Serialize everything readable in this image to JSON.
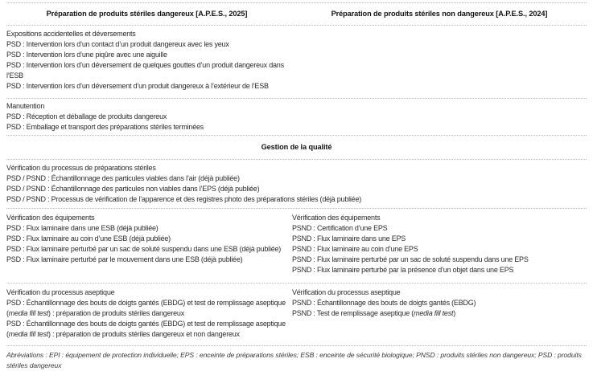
{
  "table": {
    "column_headers": {
      "left": "Préparation de produits stériles dangereux [A.P.E.S., 2025]",
      "right": "Préparation de produits stériles non dangereux [A.P.E.S., 2024]"
    },
    "quality_banner": "Gestion de la qualité",
    "sections": {
      "expositions": {
        "title": "Expositions accidentelles et déversements",
        "items": [
          "PSD : Intervention lors d’un contact d’un produit dangereux avec les yeux",
          "PSD : Intervention lors d’une piqûre avec une aiguille",
          "PSD : Intervention lors d’un déversement de quelques gouttes d’un produit dangereux dans l’ESB",
          "PSD : Intervention lors d’un déversement d’un produit dangereux à l’extérieur de l’ESB"
        ]
      },
      "manutention": {
        "title": "Manutention",
        "items": [
          "PSD : Réception et déballage de produits dangereux",
          "PSD : Emballage et transport des préparations stériles terminées"
        ]
      },
      "processus_steriles": {
        "title": "Vérification du processus de préparations stériles",
        "items": [
          "PSD / PSND : Échantillonnage des particules viables dans l’air (déjà publiée)",
          "PSD / PSND : Échantillonnage des particules non viables dans l’EPS (déjà publiée)",
          "PSD / PSND : Processus de vérification de l’apparence et des registres photo des préparations stériles (déjà publiée)"
        ]
      },
      "equipements_left": {
        "title": "Vérification des équipements",
        "items": [
          "PSD : Flux laminaire dans une ESB (déjà publiée)",
          "PSD : Flux laminaire au coin d’une ESB (déjà publiée)",
          "PSD : Flux laminaire perturbé par un sac de soluté suspendu dans une ESB (déjà publiée)",
          "PSD : Flux laminaire perturbé par le mouvement dans une ESB (déjà publiée)"
        ]
      },
      "equipements_right": {
        "title": "Vérification des équipements",
        "items": [
          "PSND : Certification d’une EPS",
          "PSND : Flux laminaire dans une EPS",
          "PSND : Flux laminaire au coin d’une EPS",
          "PSND : Flux laminaire perturbé par un sac de soluté suspendu dans une EPS",
          "PSND : Flux laminaire perturbé par la présence d’un objet dans une EPS"
        ]
      },
      "aseptique_left": {
        "title": "Vérification du processus aseptique",
        "items": [
          [
            {
              "t": "PSD : Échantillonnage des bouts de doigts gantés (EBDG) et test de remplissage aseptique ("
            },
            {
              "t": "media fill test",
              "i": true
            },
            {
              "t": ") : préparation de produits stériles dangereux"
            }
          ],
          [
            {
              "t": "PSD : Échantillonnage des bouts de doigts gantés (EBDG) et test de remplissage aseptique ("
            },
            {
              "t": "media fill test",
              "i": true
            },
            {
              "t": ") : préparation de produits stériles dangereux et non dangereux"
            }
          ]
        ]
      },
      "aseptique_right": {
        "title": "Vérification du processus aseptique",
        "items": [
          "PSND : Échantillonnage des bouts de doigts gantés (EBDG)",
          [
            {
              "t": "PSND : Test de remplissage aseptique ("
            },
            {
              "t": "media fill test",
              "i": true
            },
            {
              "t": ")"
            }
          ]
        ]
      }
    }
  },
  "footer": {
    "abbreviations": "Abréviations : EPI : équipement de protection individuelle; EPS : enceinte de préparations stériles; ESB : enceinte de sécurité biologique; PNSD : produits stériles non dangereux; PSD : produits stériles dangereux"
  },
  "colors": {
    "text": "#2a2a2a",
    "header_text": "#111111",
    "rule": "#b5b5b5"
  }
}
